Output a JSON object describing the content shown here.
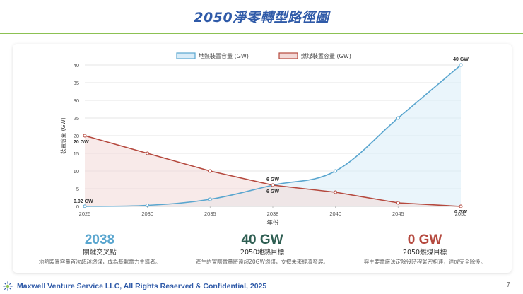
{
  "slide": {
    "title": "2050淨零轉型路徑圖",
    "footer": "Maxwell Venture Service LLC, All Rights Reserved & Confidential, 2025",
    "page_number": "7"
  },
  "colors": {
    "title": "#2f5aa8",
    "rule": "#8cc152",
    "geothermal_line": "#5aa6cf",
    "geothermal_fill": "#d9ecf8",
    "coal_line": "#b5493e",
    "coal_fill": "#f3d9d7"
  },
  "chart_data": {
    "type": "area",
    "title": "",
    "xlabel": "年份",
    "ylabel": "裝置容量 (GW)",
    "categories": [
      "2025",
      "2030",
      "2035",
      "2038",
      "2040",
      "2045",
      "2050"
    ],
    "ylim": [
      0,
      40
    ],
    "yticks": [
      "0",
      "5",
      "10",
      "15",
      "20",
      "25",
      "30",
      "35",
      "40"
    ],
    "grid": true,
    "legend": "top-center",
    "series": [
      {
        "name": "地熱裝置容量 (GW)",
        "values": [
          0.02,
          0.3,
          2,
          6,
          10,
          25,
          40
        ],
        "smooth": true
      },
      {
        "name": "燃煤裝置容量 (GW)",
        "values": [
          20,
          15,
          10,
          6,
          4,
          1,
          0
        ],
        "smooth": false
      }
    ],
    "annotations": [
      {
        "text": "40 GW",
        "series": 0,
        "index": 6
      },
      {
        "text": "20 GW",
        "series": 1,
        "index": 0
      },
      {
        "text": "0.02 GW",
        "series": 0,
        "index": 0
      },
      {
        "text": "6 GW",
        "series": 0,
        "index": 3
      },
      {
        "text": "6 GW",
        "series": 1,
        "index": 3
      },
      {
        "text": "0 GW",
        "series": 1,
        "index": 6
      }
    ]
  },
  "kpis": [
    {
      "value": "2038",
      "label": "關鍵交叉點",
      "desc": "地熱裝置容量首次超越燃煤，成為基載電力主導者。",
      "color": "#5aa6cf"
    },
    {
      "value": "40 GW",
      "label": "2050地熱目標",
      "desc": "產生的實際電量將遠超20GW燃煤，支撐未來經濟發展。",
      "color": "#2e5e52"
    },
    {
      "value": "0 GW",
      "label": "2050燃煤目標",
      "desc": "與主要電廠法定除役時程緊密相連，達成完全除役。",
      "color": "#b5493e"
    }
  ]
}
